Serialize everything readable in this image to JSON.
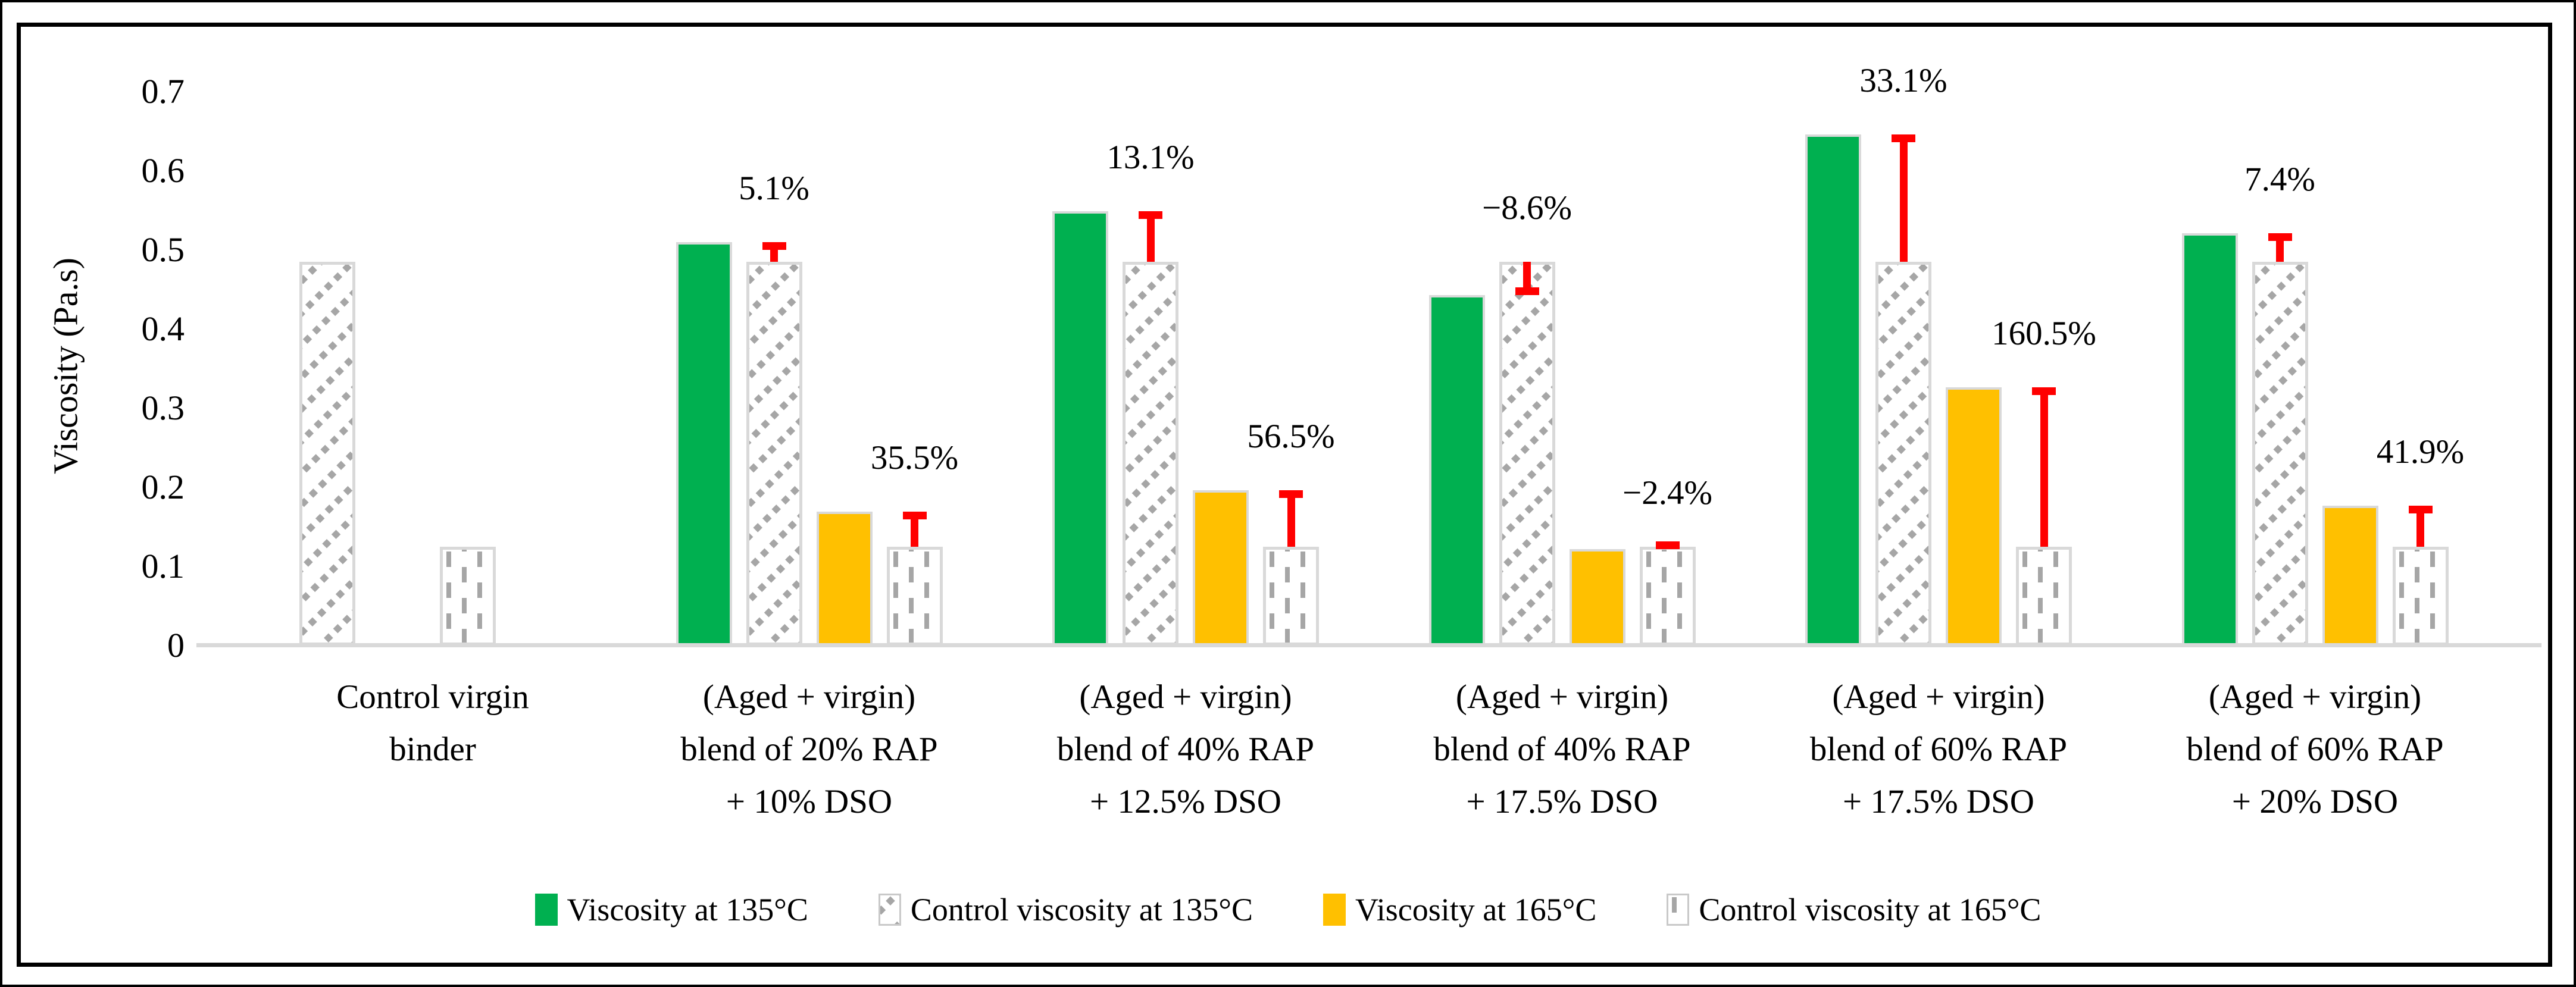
{
  "chart_data": {
    "type": "bar",
    "title": "",
    "xlabel": "",
    "ylabel": "Viscosity (Pa.s)",
    "ylim": [
      0,
      0.7
    ],
    "yticks": [
      0,
      0.1,
      0.2,
      0.3,
      0.4,
      0.5,
      0.6,
      0.7
    ],
    "ytick_labels": [
      "0",
      "0.1",
      "0.2",
      "0.3",
      "0.4",
      "0.5",
      "0.6",
      "0.7"
    ],
    "grid": false,
    "legend_position": "bottom",
    "categories": [
      "Control virgin\nbinder",
      "(Aged + virgin)\nblend of 20% RAP\n+ 10% DSO",
      "(Aged + virgin)\nblend of 40% RAP\n+ 12.5% DSO",
      "(Aged + virgin)\nblend of 40% RAP\n+ 17.5% DSO",
      "(Aged + virgin)\nblend of 60% RAP\n+ 17.5% DSO",
      "(Aged + virgin)\nblend of 60% RAP\n+ 20% DSO"
    ],
    "series": [
      {
        "key": "viscosity-135c",
        "name": "Viscosity at 135°C",
        "style": "solid",
        "color": "#00B050",
        "values": [
          null,
          0.51,
          0.549,
          0.443,
          0.646,
          0.521
        ]
      },
      {
        "key": "control-viscosity-135c",
        "name": "Control viscosity at 135°C",
        "style": "diagonal-hatch",
        "color": "#A6A6A6",
        "values": [
          0.485,
          0.485,
          0.485,
          0.485,
          0.485,
          0.485
        ]
      },
      {
        "key": "viscosity-165c",
        "name": "Viscosity at 165°C",
        "style": "solid",
        "color": "#FFC000",
        "values": [
          null,
          0.169,
          0.196,
          0.122,
          0.326,
          0.177
        ]
      },
      {
        "key": "control-viscosity-165c",
        "name": "Control viscosity at 165°C",
        "style": "dashed-vertical-hatch",
        "color": "#A6A6A6",
        "values": [
          0.125,
          0.125,
          0.125,
          0.125,
          0.125,
          0.125
        ]
      }
    ],
    "percent_diff_labels_135c": [
      "",
      "5.1%",
      "13.1%",
      "−8.6%",
      "33.1%",
      "7.4%"
    ],
    "percent_diff_labels_165c": [
      "",
      "35.5%",
      "56.5%",
      "−2.4%",
      "160.5%",
      "41.9%"
    ],
    "error_marker_color": "#FF0000",
    "colors": {
      "green": "#00B050",
      "gold": "#FFC000",
      "red": "#FF0000",
      "hatch_gray": "#A6A6A6",
      "bar_border": "#D9D9D9",
      "axis_line": "#D9D9D9",
      "text": "#000000"
    }
  }
}
